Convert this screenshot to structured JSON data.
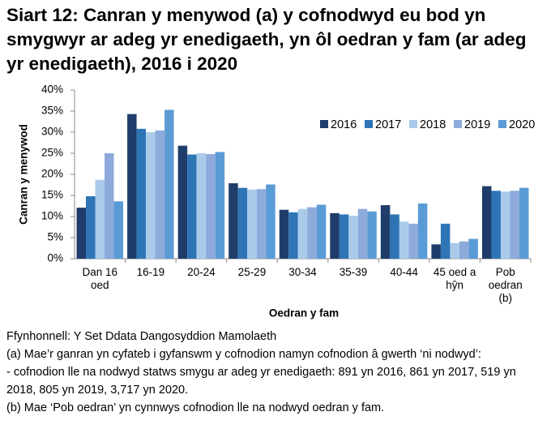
{
  "chart_data": {
    "type": "bar",
    "title": "Siart 12: Canran y menywod (a) y cofnodwyd eu bod yn smygwyr ar adeg yr enedigaeth, yn ôl oedran y fam (ar adeg yr enedigaeth), 2016 i 2020",
    "y_label": "Canran y menywod",
    "x_label": "Oedran y fam",
    "categories": [
      "Dan 16\noed",
      "16-19",
      "20-24",
      "25-29",
      "30-34",
      "35-39",
      "40-44",
      "45 oed a\nhŷn",
      "Pob\noedran\n(b)"
    ],
    "series": [
      {
        "name": "2016",
        "color": "#1f3d6b",
        "values": [
          12.1,
          34.3,
          26.8,
          17.9,
          11.6,
          10.8,
          12.7,
          3.4,
          17.2
        ]
      },
      {
        "name": "2017",
        "color": "#2e75b6",
        "values": [
          14.8,
          30.8,
          24.7,
          16.8,
          11.0,
          10.5,
          10.5,
          8.3,
          16.1
        ]
      },
      {
        "name": "2018",
        "color": "#a9cbe9",
        "values": [
          18.7,
          30.0,
          25.0,
          16.4,
          11.8,
          10.2,
          8.8,
          3.7,
          15.9
        ]
      },
      {
        "name": "2019",
        "color": "#8eaadb",
        "values": [
          25.0,
          30.4,
          24.8,
          16.5,
          12.2,
          11.8,
          8.3,
          4.1,
          16.1
        ]
      },
      {
        "name": "2020",
        "color": "#5b9bd5",
        "values": [
          13.6,
          35.3,
          25.3,
          17.6,
          12.8,
          11.2,
          13.1,
          4.7,
          16.8
        ]
      }
    ],
    "ylim": [
      0,
      40
    ],
    "yticks": [
      {
        "value": 0,
        "label": "0%"
      },
      {
        "value": 5,
        "label": "5%"
      },
      {
        "value": 10,
        "label": "10%"
      },
      {
        "value": 15,
        "label": "15%"
      },
      {
        "value": 20,
        "label": "20%"
      },
      {
        "value": 25,
        "label": "25%"
      },
      {
        "value": 30,
        "label": "30%"
      },
      {
        "value": 35,
        "label": "35%"
      },
      {
        "value": 40,
        "label": "40%"
      }
    ],
    "grid": false,
    "legend": "top-right",
    "notes": [
      "Ffynhonnell: Y Set Ddata Dangosyddion Mamolaeth",
      "(a) Mae’r ganran yn cyfateb i gyfanswm y cofnodion namyn cofnodion â gwerth ‘ni nodwyd’:",
      "- cofnodion lle na nodwyd statws smygu ar adeg yr enedigaeth: 891 yn 2016, 861 yn 2017, 519 yn 2018, 805 yn 2019, 3,717 yn 2020.",
      "(b) Mae ‘Pob oedran’ yn cynnwys cofnodion lle na nodwyd oedran y fam."
    ]
  }
}
